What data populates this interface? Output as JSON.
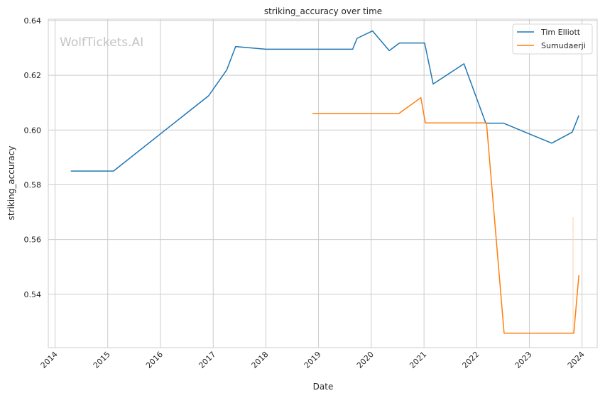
{
  "chart_data": {
    "type": "line",
    "title": "striking_accuracy over time",
    "xlabel": "Date",
    "ylabel": "striking_accuracy",
    "watermark": "WolfTickets.AI",
    "x_ticks": [
      "2014",
      "2015",
      "2016",
      "2017",
      "2018",
      "2019",
      "2020",
      "2021",
      "2022",
      "2023",
      "2024"
    ],
    "y_ticks": [
      "0.54",
      "0.56",
      "0.58",
      "0.60",
      "0.62",
      "0.64"
    ],
    "xlim": [
      "2013-11-15",
      "2024-04-15"
    ],
    "ylim": [
      0.5205,
      0.6405
    ],
    "grid": true,
    "legend_position": "top-right",
    "series": [
      {
        "name": "Tim Elliott",
        "color": "#1f77b4",
        "points": [
          {
            "x": "2014-04-20",
            "y": 0.585
          },
          {
            "x": "2015-02-10",
            "y": 0.585
          },
          {
            "x": "2016-11-30",
            "y": 0.6125
          },
          {
            "x": "2017-04-05",
            "y": 0.622
          },
          {
            "x": "2017-06-05",
            "y": 0.6305
          },
          {
            "x": "2018-01-01",
            "y": 0.6295
          },
          {
            "x": "2019-08-25",
            "y": 0.6295
          },
          {
            "x": "2019-09-25",
            "y": 0.6335
          },
          {
            "x": "2020-01-10",
            "y": 0.6362
          },
          {
            "x": "2020-05-05",
            "y": 0.629
          },
          {
            "x": "2020-07-15",
            "y": 0.6318
          },
          {
            "x": "2021-01-05",
            "y": 0.6318
          },
          {
            "x": "2021-03-05",
            "y": 0.6168
          },
          {
            "x": "2021-10-05",
            "y": 0.6242
          },
          {
            "x": "2022-03-05",
            "y": 0.6025
          },
          {
            "x": "2022-07-05",
            "y": 0.6025
          },
          {
            "x": "2023-06-05",
            "y": 0.5952
          },
          {
            "x": "2023-10-25",
            "y": 0.5992
          },
          {
            "x": "2023-12-10",
            "y": 0.6053
          }
        ]
      },
      {
        "name": "Sumudaerji",
        "color": "#ff7f0e",
        "points": [
          {
            "x": "2018-11-20",
            "y": 0.606
          },
          {
            "x": "2020-07-10",
            "y": 0.606
          },
          {
            "x": "2020-12-10",
            "y": 0.6118
          },
          {
            "x": "2021-01-10",
            "y": 0.6026
          },
          {
            "x": "2022-03-10",
            "y": 0.6026
          },
          {
            "x": "2022-07-10",
            "y": 0.5258
          },
          {
            "x": "2023-11-05",
            "y": 0.5258
          },
          {
            "x": "2023-12-10",
            "y": 0.547
          }
        ]
      }
    ]
  }
}
